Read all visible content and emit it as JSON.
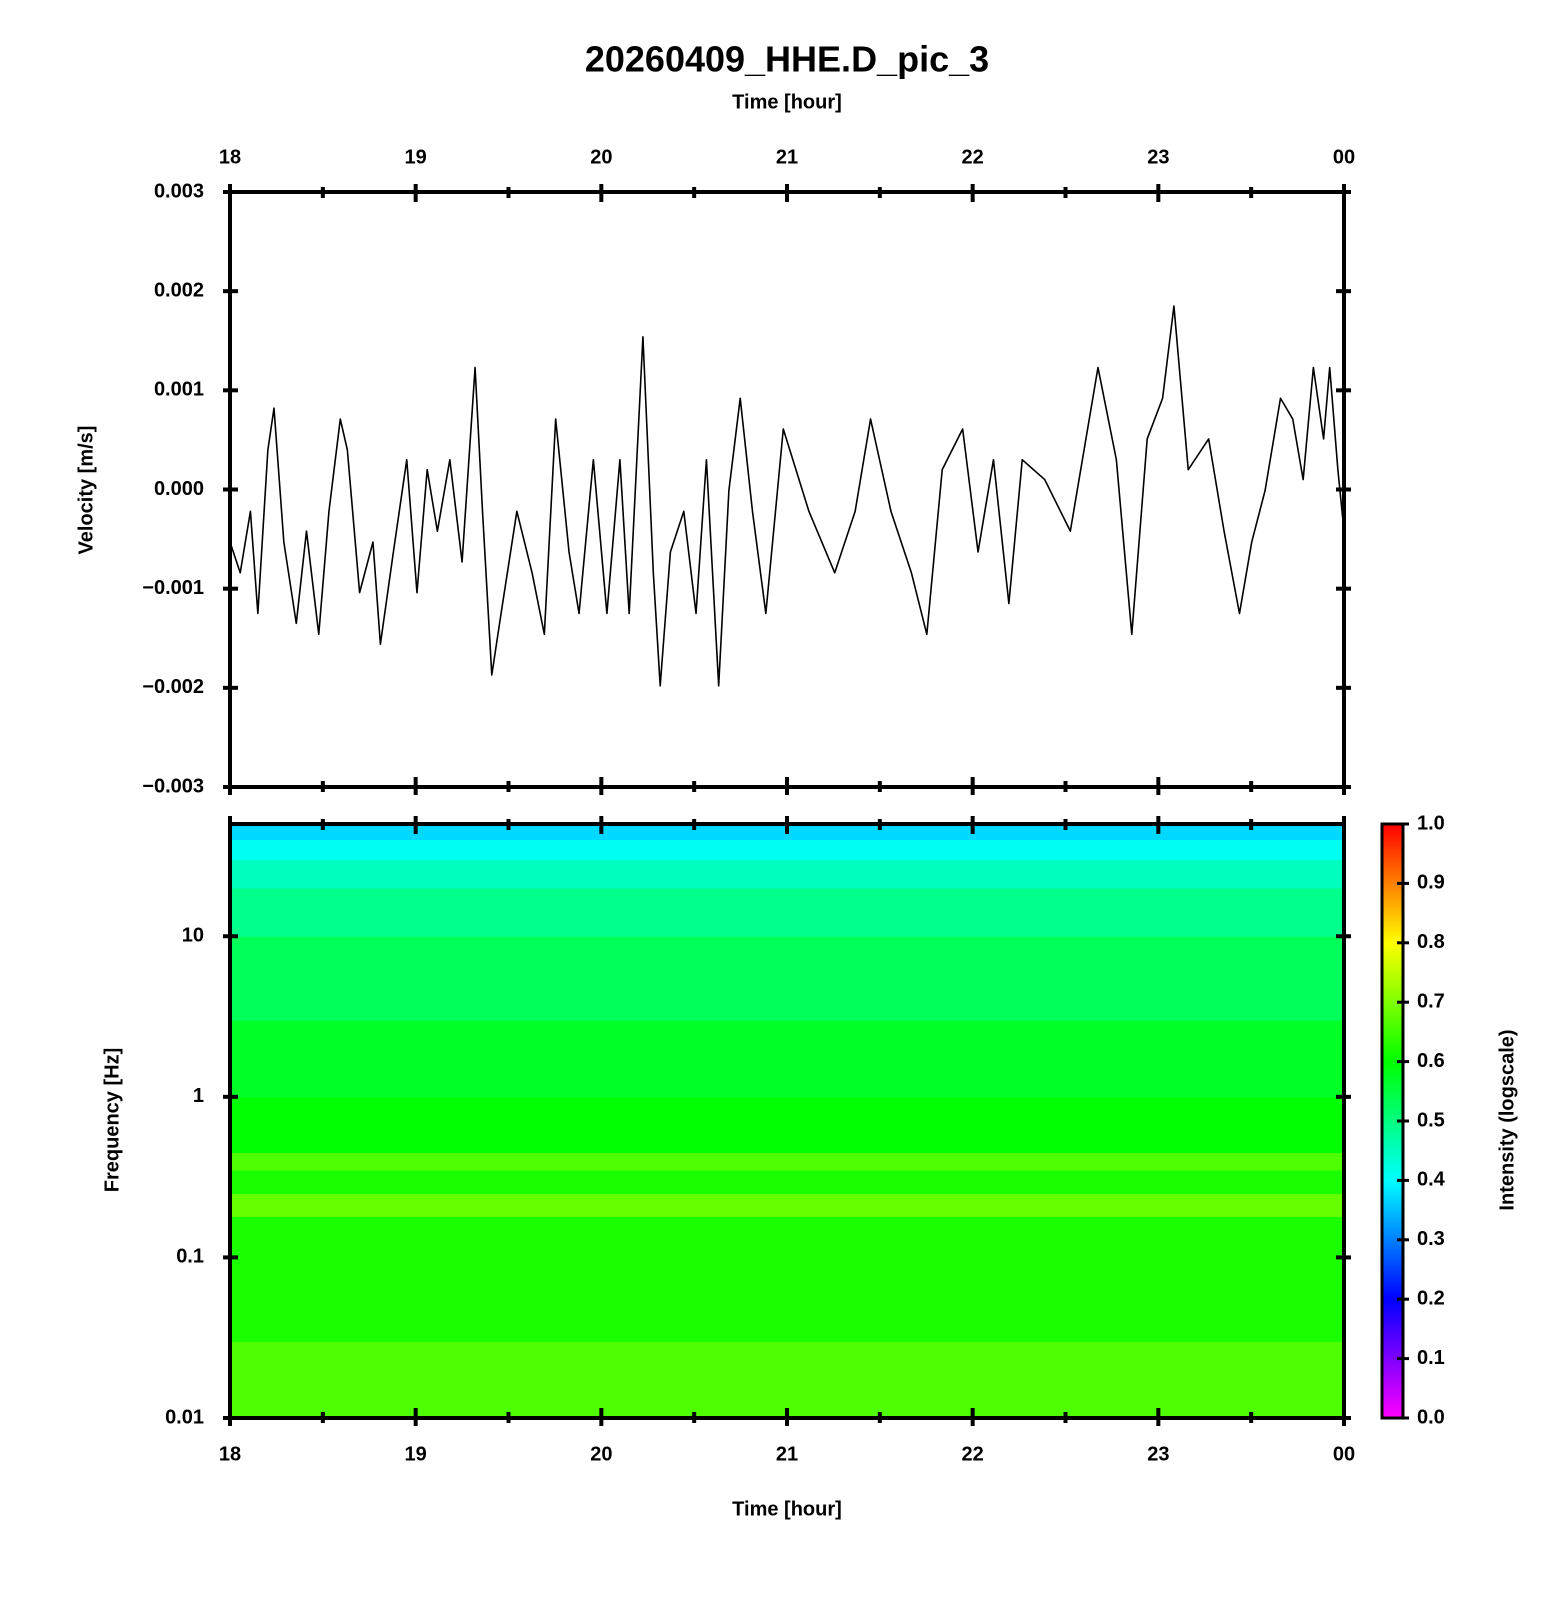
{
  "chart_data": [
    {
      "type": "line",
      "title": "20260409_HHE.D_pic_3",
      "x_label": "Time [hour]",
      "y_label": "Velocity [m/s]",
      "xlim": [
        18,
        24
      ],
      "xticks": [
        18,
        19,
        20,
        21,
        22,
        23,
        {
          "value": 24,
          "label": "00"
        }
      ],
      "xminorticks": [
        18.5,
        19.5,
        20.5,
        21.5,
        22.5,
        23.5
      ],
      "ylim": [
        -0.003,
        0.003
      ],
      "yticks": [
        {
          "value": -0.003,
          "label": "−0.003"
        },
        {
          "value": -0.002,
          "label": "−0.002"
        },
        {
          "value": -0.001,
          "label": "−0.001"
        },
        {
          "value": 0,
          "label": "0.000"
        },
        0.001,
        0.002,
        0.003
      ],
      "series": [
        {
          "color": "#000000",
          "x": [
            18.0,
            18.055,
            18.11,
            18.15,
            18.204,
            18.237,
            18.29,
            18.357,
            18.412,
            18.478,
            18.533,
            18.594,
            18.632,
            18.698,
            18.77,
            18.81,
            18.88,
            18.952,
            19.007,
            19.062,
            19.117,
            19.184,
            19.25,
            19.32,
            19.36,
            19.41,
            19.46,
            19.545,
            19.627,
            19.693,
            19.754,
            19.826,
            19.88,
            19.957,
            20.03,
            20.1,
            20.15,
            20.224,
            20.28,
            20.317,
            20.372,
            20.444,
            20.51,
            20.566,
            20.632,
            20.687,
            20.748,
            20.814,
            20.886,
            20.98,
            21.118,
            21.257,
            21.367,
            21.45,
            21.56,
            21.67,
            21.753,
            21.836,
            21.946,
            22.029,
            22.112,
            22.195,
            22.267,
            22.388,
            22.526,
            22.675,
            22.774,
            22.857,
            22.94,
            23.023,
            23.084,
            23.161,
            23.271,
            23.354,
            23.437,
            23.503,
            23.575,
            23.658,
            23.724,
            23.78,
            23.835,
            23.89,
            23.923,
            23.967,
            24.0
          ],
          "values": [
            -0.00053,
            -0.00084,
            -0.00022,
            -0.00125,
            0.0004,
            0.00082,
            -0.00053,
            -0.00135,
            -0.00042,
            -0.00146,
            -0.00022,
            0.00071,
            0.0004,
            -0.00104,
            -0.00053,
            -0.00156,
            -0.00063,
            0.0003,
            -0.00104,
            0.0002,
            -0.00042,
            0.0003,
            -0.00073,
            0.00123,
            -0.00022,
            -0.00187,
            -0.00125,
            -0.00022,
            -0.00084,
            -0.00146,
            0.00071,
            -0.00063,
            -0.00125,
            0.0003,
            -0.00125,
            0.0003,
            -0.00125,
            0.00154,
            -0.00084,
            -0.00198,
            -0.00063,
            -0.00022,
            -0.00125,
            0.0003,
            -0.00198,
            -1e-05,
            0.00092,
            -0.00022,
            -0.00125,
            0.00061,
            -0.00022,
            -0.00084,
            -0.00022,
            0.00071,
            -0.00022,
            -0.00084,
            -0.00146,
            0.0002,
            0.00061,
            -0.00063,
            0.0003,
            -0.00115,
            0.0003,
            0.0001,
            -0.00042,
            0.00123,
            0.0003,
            -0.00146,
            0.00051,
            0.00092,
            0.00185,
            0.0002,
            0.00051,
            -0.00042,
            -0.00125,
            -0.00053,
            -1e-05,
            0.00092,
            0.00071,
            0.0001,
            0.00123,
            0.00051,
            0.00123,
            0.0002,
            -0.00042
          ]
        }
      ]
    },
    {
      "type": "spectrogram",
      "x_label": "Time [hour]",
      "y_label": "Frequency [Hz]",
      "xlim": [
        18,
        24
      ],
      "xticks": [
        18,
        19,
        20,
        21,
        22,
        23,
        {
          "value": 24,
          "label": "00"
        }
      ],
      "xminorticks": [
        18.5,
        19.5,
        20.5,
        21.5,
        22.5,
        23.5
      ],
      "ylim": [
        0.01,
        50
      ],
      "yscale": "log",
      "yticks": [
        0.01,
        0.1,
        1,
        10
      ],
      "bins": [
        0.01,
        0.03,
        0.15,
        0.18,
        0.25,
        0.35,
        0.45,
        1,
        3,
        10,
        20,
        30,
        40,
        50
      ],
      "intensity": [
        0.66,
        0.62,
        0.62,
        0.68,
        0.62,
        0.66,
        0.6,
        0.57,
        0.53,
        0.49,
        0.45,
        0.41,
        0.37
      ],
      "colorbar_label": "Intensity (logscale)",
      "clim": [
        0,
        1
      ],
      "cticks": [
        {
          "value": 0,
          "label": "0.0"
        },
        0.1,
        0.2,
        0.3,
        0.4,
        0.5,
        0.6,
        0.7,
        0.8,
        0.9,
        {
          "value": 1,
          "label": "1.0"
        }
      ],
      "colormap": [
        "#ff00ff",
        "#0000ff",
        "#00ffff",
        "#00ff00",
        "#ffff00",
        "#ff0000"
      ]
    }
  ]
}
